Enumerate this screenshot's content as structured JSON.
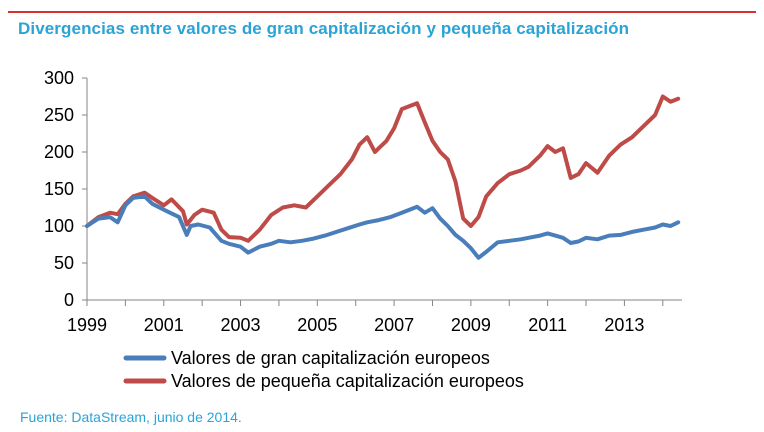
{
  "header": {
    "title": "Divergencias entre valores de gran capitalización y pequeña capitalización"
  },
  "source": "Fuente: DataStream, junio de 2014.",
  "colors": {
    "accent_rule": "#d9302c",
    "title": "#2aa3d6",
    "large_cap": "#4a7ebb",
    "small_cap": "#be4b48"
  },
  "chart_data": {
    "type": "line",
    "title": "Divergencias entre valores de gran capitalización y pequeña capitalización",
    "xlabel": "",
    "ylabel": "",
    "xlim": [
      1999,
      2014.5
    ],
    "ylim": [
      0,
      300
    ],
    "y_ticks": [
      "0",
      "50",
      "100",
      "150",
      "200",
      "250",
      "300"
    ],
    "x_ticks": [
      "1999",
      "2001",
      "2003",
      "2005",
      "2007",
      "2009",
      "2011",
      "2013"
    ],
    "grid": false,
    "legend_position": "bottom",
    "series": [
      {
        "name": "Valores de gran capitalización europeos",
        "color": "#4a7ebb",
        "x": [
          1999.0,
          1999.3,
          1999.6,
          1999.8,
          2000.0,
          2000.2,
          2000.5,
          2000.7,
          2001.0,
          2001.2,
          2001.4,
          2001.6,
          2001.7,
          2001.9,
          2002.2,
          2002.5,
          2002.7,
          2003.0,
          2003.2,
          2003.5,
          2003.8,
          2004.0,
          2004.3,
          2004.6,
          2004.9,
          2005.2,
          2005.5,
          2005.8,
          2006.1,
          2006.3,
          2006.6,
          2006.9,
          2007.2,
          2007.4,
          2007.6,
          2007.8,
          2008.0,
          2008.2,
          2008.4,
          2008.6,
          2008.8,
          2009.0,
          2009.2,
          2009.4,
          2009.7,
          2010.0,
          2010.3,
          2010.5,
          2010.8,
          2011.0,
          2011.2,
          2011.4,
          2011.6,
          2011.8,
          2012.0,
          2012.3,
          2012.6,
          2012.9,
          2013.2,
          2013.5,
          2013.8,
          2014.0,
          2014.2,
          2014.4
        ],
        "values": [
          100,
          110,
          112,
          105,
          128,
          138,
          140,
          130,
          122,
          117,
          112,
          88,
          100,
          102,
          98,
          80,
          76,
          72,
          64,
          72,
          76,
          80,
          78,
          80,
          83,
          87,
          92,
          97,
          102,
          105,
          108,
          112,
          118,
          122,
          126,
          118,
          124,
          110,
          100,
          88,
          80,
          70,
          57,
          65,
          78,
          80,
          82,
          84,
          87,
          90,
          87,
          84,
          77,
          79,
          84,
          82,
          87,
          88,
          92,
          95,
          98,
          102,
          100,
          105
        ]
      },
      {
        "name": "Valores de pequeña capitalización europeos",
        "color": "#be4b48",
        "x": [
          1999.0,
          1999.3,
          1999.6,
          1999.8,
          2000.0,
          2000.2,
          2000.5,
          2000.7,
          2001.0,
          2001.2,
          2001.5,
          2001.6,
          2001.8,
          2002.0,
          2002.3,
          2002.5,
          2002.7,
          2003.0,
          2003.2,
          2003.5,
          2003.8,
          2004.1,
          2004.4,
          2004.7,
          2005.0,
          2005.3,
          2005.6,
          2005.9,
          2006.1,
          2006.3,
          2006.5,
          2006.8,
          2007.0,
          2007.2,
          2007.4,
          2007.6,
          2007.8,
          2008.0,
          2008.2,
          2008.4,
          2008.6,
          2008.8,
          2009.0,
          2009.2,
          2009.4,
          2009.7,
          2010.0,
          2010.3,
          2010.5,
          2010.8,
          2011.0,
          2011.2,
          2011.4,
          2011.6,
          2011.8,
          2012.0,
          2012.3,
          2012.6,
          2012.9,
          2013.2,
          2013.5,
          2013.8,
          2014.0,
          2014.2,
          2014.4
        ],
        "values": [
          100,
          112,
          118,
          116,
          130,
          140,
          145,
          138,
          128,
          136,
          120,
          102,
          115,
          122,
          118,
          95,
          85,
          84,
          80,
          95,
          115,
          125,
          128,
          125,
          140,
          155,
          170,
          190,
          210,
          220,
          200,
          215,
          232,
          258,
          262,
          266,
          240,
          215,
          200,
          190,
          160,
          110,
          100,
          112,
          140,
          158,
          170,
          175,
          180,
          195,
          208,
          200,
          205,
          165,
          170,
          185,
          172,
          195,
          210,
          220,
          235,
          250,
          275,
          268,
          272
        ]
      }
    ]
  }
}
